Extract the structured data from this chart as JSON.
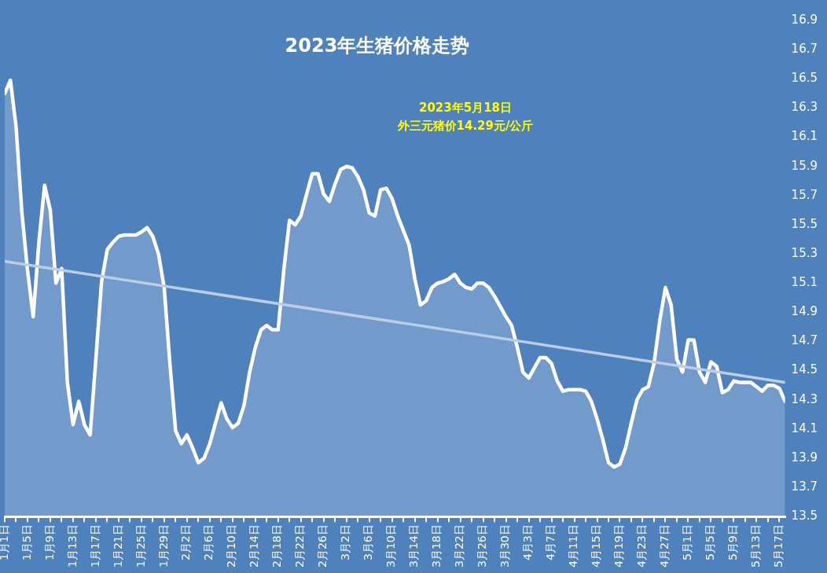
{
  "chart_data": {
    "type": "line",
    "title": "2023年生猪价格走势",
    "annotations": [
      "2023年5月18日",
      "外三元猪价14.29元/公斤"
    ],
    "x": [
      "--01-01",
      "--01-02",
      "--01-03",
      "--01-04",
      "--01-05",
      "--01-06",
      "--01-07",
      "--01-08",
      "--01-09",
      "--01-10",
      "--01-11",
      "--01-12",
      "--01-13",
      "--01-14",
      "--01-15",
      "--01-16",
      "--01-17",
      "--01-18",
      "--01-19",
      "--01-20",
      "--01-21",
      "--01-22",
      "--01-23",
      "--01-24",
      "--01-25",
      "--01-26",
      "--01-27",
      "--01-28",
      "--01-29",
      "--01-30",
      "--01-31",
      "--02-01",
      "--02-02",
      "--02-03",
      "--02-04",
      "--02-05",
      "--02-06",
      "--02-07",
      "--02-08",
      "--02-09",
      "--02-10",
      "--02-11",
      "--02-12",
      "--02-13",
      "--02-14",
      "--02-15",
      "--02-16",
      "--02-17",
      "--02-18",
      "--02-19",
      "--02-20",
      "--02-21",
      "--02-22",
      "--02-23",
      "--02-24",
      "--02-25",
      "--02-26",
      "--02-27",
      "--02-28",
      "--03-01",
      "--03-02",
      "--03-03",
      "--03-04",
      "--03-05",
      "--03-06",
      "--03-07",
      "--03-08",
      "--03-09",
      "--03-10",
      "--03-11",
      "--03-12",
      "--03-13",
      "--03-14",
      "--03-15",
      "--03-16",
      "--03-17",
      "--03-18",
      "--03-19",
      "--03-20",
      "--03-21",
      "--03-22",
      "--03-23",
      "--03-24",
      "--03-25",
      "--03-26",
      "--03-27",
      "--03-28",
      "--03-29",
      "--03-30",
      "--03-31",
      "--04-01",
      "--04-02",
      "--04-03",
      "--04-04",
      "--04-05",
      "--04-06",
      "--04-07",
      "--04-08",
      "--04-09",
      "--04-10",
      "--04-11",
      "--04-12",
      "--04-13",
      "--04-14",
      "--04-15",
      "--04-16",
      "--04-17",
      "--04-18",
      "--04-19",
      "--04-20",
      "--04-21",
      "--04-22",
      "--04-23",
      "--04-24",
      "--04-25",
      "--04-26",
      "--04-27",
      "--04-28",
      "--04-29",
      "--04-30",
      "--05-01",
      "--05-02",
      "--05-03",
      "--05-04",
      "--05-05",
      "--05-06",
      "--05-07",
      "--05-08",
      "--05-09",
      "--05-10",
      "--05-11",
      "--05-12",
      "--05-13",
      "--05-14",
      "--05-15",
      "--05-16",
      "--05-17",
      "--05-18"
    ],
    "series": [
      {
        "type": "area",
        "color": "#ffffff",
        "values": [
          16.4,
          16.49,
          16.17,
          15.59,
          15.19,
          14.87,
          15.38,
          15.77,
          15.6,
          15.1,
          15.2,
          14.42,
          14.13,
          14.29,
          14.13,
          14.06,
          14.58,
          15.11,
          15.33,
          15.38,
          15.42,
          15.43,
          15.43,
          15.43,
          15.45,
          15.48,
          15.42,
          15.3,
          15.07,
          14.55,
          14.09,
          14.0,
          14.06,
          13.97,
          13.87,
          13.9,
          14.0,
          14.14,
          14.28,
          14.17,
          14.11,
          14.14,
          14.26,
          14.49,
          14.66,
          14.78,
          14.81,
          14.78,
          14.78,
          15.19,
          15.53,
          15.5,
          15.56,
          15.71,
          15.85,
          15.85,
          15.71,
          15.66,
          15.78,
          15.88,
          15.9,
          15.89,
          15.83,
          15.74,
          15.58,
          15.56,
          15.74,
          15.75,
          15.68,
          15.56,
          15.46,
          15.36,
          15.13,
          14.95,
          14.98,
          15.07,
          15.1,
          15.11,
          15.13,
          15.16,
          15.1,
          15.07,
          15.06,
          15.1,
          15.1,
          15.07,
          15.01,
          14.94,
          14.87,
          14.81,
          14.66,
          14.49,
          14.45,
          14.52,
          14.59,
          14.59,
          14.55,
          14.43,
          14.36,
          14.37,
          14.37,
          14.37,
          14.36,
          14.29,
          14.17,
          14.03,
          13.87,
          13.84,
          13.86,
          13.97,
          14.14,
          14.3,
          14.37,
          14.39,
          14.55,
          14.84,
          15.07,
          14.95,
          14.58,
          14.49,
          14.71,
          14.71,
          14.49,
          14.42,
          14.56,
          14.53,
          14.35,
          14.37,
          14.43,
          14.42,
          14.42,
          14.42,
          14.39,
          14.36,
          14.4,
          14.4,
          14.38,
          14.29
        ]
      },
      {
        "color": "#bccde6",
        "x": [
          "--01-01",
          "--05-18"
        ],
        "values": [
          15.25,
          14.42
        ]
      }
    ],
    "xlim": [
      "--01-01",
      "--05-18"
    ],
    "xticks": [
      {
        "value": "--01-01",
        "label": "1月1日"
      },
      {
        "value": "--01-03",
        "label": null
      },
      {
        "value": "--01-05",
        "label": "1月5日"
      },
      {
        "value": "--01-07",
        "label": null
      },
      {
        "value": "--01-09",
        "label": "1月9日"
      },
      {
        "value": "--01-11",
        "label": null
      },
      {
        "value": "--01-13",
        "label": "1月13日"
      },
      {
        "value": "--01-15",
        "label": null
      },
      {
        "value": "--01-17",
        "label": "1月17日"
      },
      {
        "value": "--01-19",
        "label": null
      },
      {
        "value": "--01-21",
        "label": "1月21日"
      },
      {
        "value": "--01-23",
        "label": null
      },
      {
        "value": "--01-25",
        "label": "1月25日"
      },
      {
        "value": "--01-27",
        "label": null
      },
      {
        "value": "--01-29",
        "label": "1月29日"
      },
      {
        "value": "--01-31",
        "label": null
      },
      {
        "value": "--02-02",
        "label": "2月2日"
      },
      {
        "value": "--02-04",
        "label": null
      },
      {
        "value": "--02-06",
        "label": "2月6日"
      },
      {
        "value": "--02-08",
        "label": null
      },
      {
        "value": "--02-10",
        "label": "2月10日"
      },
      {
        "value": "--02-12",
        "label": null
      },
      {
        "value": "--02-14",
        "label": "2月14日"
      },
      {
        "value": "--02-16",
        "label": null
      },
      {
        "value": "--02-18",
        "label": "2月18日"
      },
      {
        "value": "--02-20",
        "label": null
      },
      {
        "value": "--02-22",
        "label": "2月22日"
      },
      {
        "value": "--02-24",
        "label": null
      },
      {
        "value": "--02-26",
        "label": "2月26日"
      },
      {
        "value": "--02-28",
        "label": null
      },
      {
        "value": "--03-02",
        "label": "3月2日"
      },
      {
        "value": "--03-04",
        "label": null
      },
      {
        "value": "--03-06",
        "label": "3月6日"
      },
      {
        "value": "--03-08",
        "label": null
      },
      {
        "value": "--03-10",
        "label": "3月10日"
      },
      {
        "value": "--03-12",
        "label": null
      },
      {
        "value": "--03-14",
        "label": "3月14日"
      },
      {
        "value": "--03-16",
        "label": null
      },
      {
        "value": "--03-18",
        "label": "3月18日"
      },
      {
        "value": "--03-20",
        "label": null
      },
      {
        "value": "--03-22",
        "label": "3月22日"
      },
      {
        "value": "--03-24",
        "label": null
      },
      {
        "value": "--03-26",
        "label": "3月26日"
      },
      {
        "value": "--03-28",
        "label": null
      },
      {
        "value": "--03-30",
        "label": "3月30日"
      },
      {
        "value": "--04-01",
        "label": null
      },
      {
        "value": "--04-03",
        "label": "4月3日"
      },
      {
        "value": "--04-05",
        "label": null
      },
      {
        "value": "--04-07",
        "label": "4月7日"
      },
      {
        "value": "--04-09",
        "label": null
      },
      {
        "value": "--04-11",
        "label": "4月11日"
      },
      {
        "value": "--04-13",
        "label": null
      },
      {
        "value": "--04-15",
        "label": "4月15日"
      },
      {
        "value": "--04-17",
        "label": null
      },
      {
        "value": "--04-19",
        "label": "4月19日"
      },
      {
        "value": "--04-21",
        "label": null
      },
      {
        "value": "--04-23",
        "label": "4月23日"
      },
      {
        "value": "--04-25",
        "label": null
      },
      {
        "value": "--04-27",
        "label": "4月27日"
      },
      {
        "value": "--04-29",
        "label": null
      },
      {
        "value": "--05-01",
        "label": "5月1日"
      },
      {
        "value": "--05-03",
        "label": null
      },
      {
        "value": "--05-05",
        "label": "5月5日"
      },
      {
        "value": "--05-07",
        "label": null
      },
      {
        "value": "--05-09",
        "label": "5月9日"
      },
      {
        "value": "--05-11",
        "label": null
      },
      {
        "value": "--05-13",
        "label": "5月13日"
      },
      {
        "value": "--05-15",
        "label": null
      },
      {
        "value": "--05-17",
        "label": "5月17日"
      }
    ],
    "ylim": [
      13.5,
      16.9
    ],
    "yticks": [
      13.5,
      13.7,
      13.9,
      14.1,
      14.3,
      14.5,
      14.7,
      14.9,
      15.1,
      15.3,
      15.5,
      15.7,
      15.9,
      16.1,
      16.3,
      16.5,
      16.7,
      16.9
    ],
    "marker": "none",
    "line_style": "solid",
    "grid": false,
    "legend": false
  }
}
